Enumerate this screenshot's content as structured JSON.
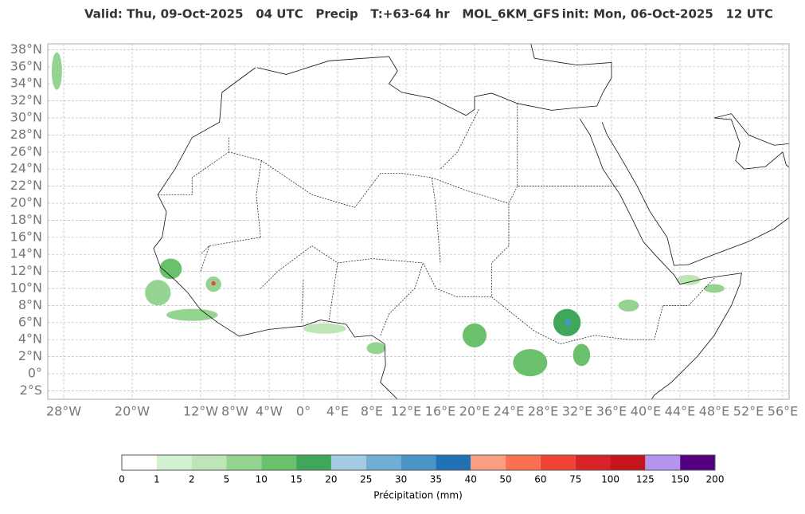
{
  "header": {
    "title": "Valid: Thu, 09-Oct-2025   04 UTC   Precip   T:+63-64 hr   MOL_6KM_GFS",
    "init": "init: Mon, 06-Oct-2025   12 UTC"
  },
  "map": {
    "lat_ticks": [
      {
        "value": 38,
        "label": "38°N"
      },
      {
        "value": 36,
        "label": "36°N"
      },
      {
        "value": 34,
        "label": "34°N"
      },
      {
        "value": 32,
        "label": "32°N"
      },
      {
        "value": 30,
        "label": "30°N"
      },
      {
        "value": 28,
        "label": "28°N"
      },
      {
        "value": 26,
        "label": "26°N"
      },
      {
        "value": 24,
        "label": "24°N"
      },
      {
        "value": 22,
        "label": "22°N"
      },
      {
        "value": 20,
        "label": "20°N"
      },
      {
        "value": 18,
        "label": "18°N"
      },
      {
        "value": 16,
        "label": "16°N"
      },
      {
        "value": 14,
        "label": "14°N"
      },
      {
        "value": 12,
        "label": "12°N"
      },
      {
        "value": 10,
        "label": "10°N"
      },
      {
        "value": 8,
        "label": "8°N"
      },
      {
        "value": 6,
        "label": "6°N"
      },
      {
        "value": 4,
        "label": "4°N"
      },
      {
        "value": 2,
        "label": "2°N"
      },
      {
        "value": 0,
        "label": "0°"
      },
      {
        "value": -2,
        "label": "2°S"
      }
    ],
    "lon_ticks": [
      {
        "value": -28,
        "label": "28°W"
      },
      {
        "value": -20,
        "label": "20°W"
      },
      {
        "value": -12,
        "label": "12°W"
      },
      {
        "value": -8,
        "label": "8°W"
      },
      {
        "value": -4,
        "label": "4°W"
      },
      {
        "value": 0,
        "label": "0°"
      },
      {
        "value": 4,
        "label": "4°E"
      },
      {
        "value": 8,
        "label": "8°E"
      },
      {
        "value": 12,
        "label": "12°E"
      },
      {
        "value": 16,
        "label": "16°E"
      },
      {
        "value": 20,
        "label": "20°E"
      },
      {
        "value": 24,
        "label": "24°E"
      },
      {
        "value": 28,
        "label": "28°E"
      },
      {
        "value": 32,
        "label": "32°E"
      },
      {
        "value": 36,
        "label": "36°E"
      },
      {
        "value": 40,
        "label": "40°E"
      },
      {
        "value": 44,
        "label": "44°E"
      },
      {
        "value": 48,
        "label": "48°E"
      },
      {
        "value": 52,
        "label": "52°E"
      },
      {
        "value": 56,
        "label": "56°E"
      }
    ]
  },
  "colorbar": {
    "bounds": [
      0,
      1,
      2,
      5,
      10,
      15,
      20,
      25,
      30,
      35,
      40,
      50,
      60,
      75,
      100,
      125,
      150,
      200
    ],
    "colors": [
      "#ffffff",
      "#d3f0d0",
      "#bde5b5",
      "#95d391",
      "#6bc06b",
      "#3ea75a",
      "#a3cbe2",
      "#70aed6",
      "#4a95c7",
      "#2171b5",
      "#fc9e82",
      "#fb7050",
      "#f04437",
      "#d72228",
      "#c4151b",
      "#b494ec",
      "#52007f"
    ],
    "label": "Précipitation (mm)"
  }
}
